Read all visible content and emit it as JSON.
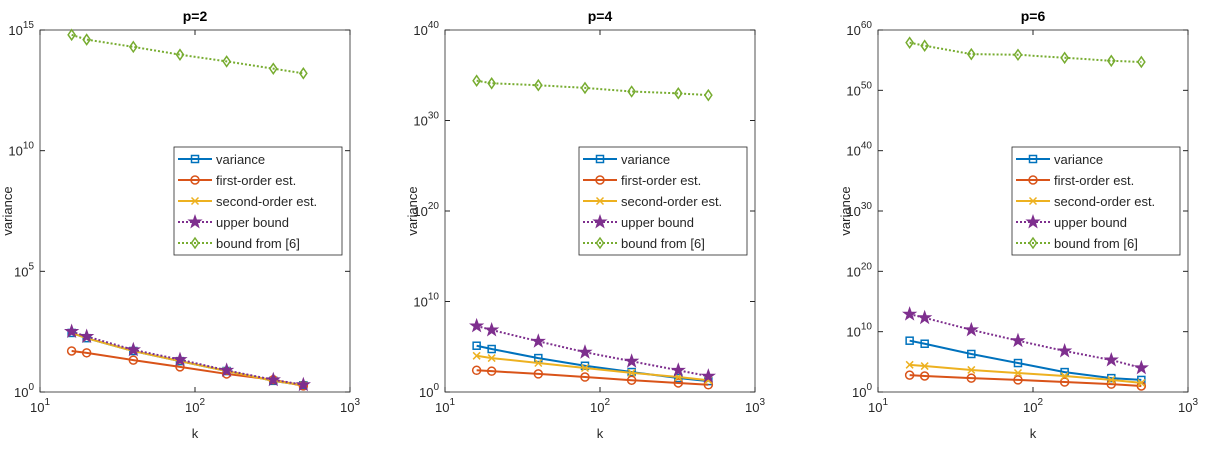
{
  "chart_data": [
    {
      "type": "line",
      "title": "p=2",
      "x_label": "k",
      "y_label": "variance",
      "log_x": true,
      "log_y": true,
      "legend": "east",
      "x": [
        16,
        20,
        40,
        80,
        160,
        320,
        500
      ],
      "xlim": [
        10,
        1000
      ],
      "xticks": [
        {
          "value": 10,
          "label": "10^1"
        },
        {
          "value": 100,
          "label": "10^2"
        },
        {
          "value": 1000,
          "label": "10^3"
        }
      ],
      "ylim": [
        1,
        1000000000000000.0
      ],
      "yticks": [
        {
          "value": 1,
          "label": "10^0"
        },
        {
          "value": 100000.0,
          "label": "10^5"
        },
        {
          "value": 10000000000.0,
          "label": "10^10"
        },
        {
          "value": 1000000000000000.0,
          "label": "10^15"
        }
      ],
      "series": [
        {
          "name": "variance",
          "color": "#0072BD",
          "line_style": "solid",
          "marker": "square",
          "values": [
            280,
            170,
            50,
            19,
            7.4,
            2.9,
            1.9
          ]
        },
        {
          "name": "first-order est.",
          "color": "#D95319",
          "line_style": "solid",
          "marker": "circle",
          "values": [
            50,
            42,
            21,
            11,
            5.6,
            3.2,
            1.8
          ]
        },
        {
          "name": "second-order est.",
          "color": "#EDB120",
          "line_style": "solid",
          "marker": "x",
          "values": [
            280,
            170,
            50,
            19,
            7.4,
            2.9,
            1.9
          ]
        },
        {
          "name": "upper bound",
          "color": "#7E2F8E",
          "line_style": "dotted",
          "marker": "star",
          "values": [
            320,
            200,
            56,
            22,
            7.9,
            3.2,
            2.0
          ]
        },
        {
          "name": "bound from [6]",
          "color": "#77AC30",
          "line_style": "dotted",
          "marker": "diamond",
          "values": [
            630000000000000.0,
            400000000000000.0,
            200000000000000.0,
            95000000000000.0,
            50000000000000.0,
            25000000000000.0,
            16000000000000.0
          ]
        }
      ]
    },
    {
      "type": "line",
      "title": "p=4",
      "x_label": "k",
      "y_label": "variance",
      "log_x": true,
      "log_y": true,
      "legend": "east",
      "x": [
        16,
        20,
        40,
        80,
        160,
        320,
        500
      ],
      "xlim": [
        10,
        1000
      ],
      "xticks": [
        {
          "value": 10,
          "label": "10^1"
        },
        {
          "value": 100,
          "label": "10^2"
        },
        {
          "value": 1000,
          "label": "10^3"
        }
      ],
      "ylim": [
        1,
        1e+40
      ],
      "yticks": [
        {
          "value": 1,
          "label": "10^0"
        },
        {
          "value": 10000000000.0,
          "label": "10^10"
        },
        {
          "value": 1e+20,
          "label": "10^20"
        },
        {
          "value": 1e+30,
          "label": "10^30"
        },
        {
          "value": 1e+40,
          "label": "10^40"
        }
      ],
      "series": [
        {
          "name": "variance",
          "color": "#0072BD",
          "line_style": "solid",
          "marker": "square",
          "values": [
            130000.0,
            56000.0,
            5600.0,
            790,
            160,
            35,
            16
          ]
        },
        {
          "name": "first-order est.",
          "color": "#D95319",
          "line_style": "solid",
          "marker": "circle",
          "values": [
            250,
            200,
            100,
            45,
            20,
            10,
            6.3
          ]
        },
        {
          "name": "second-order est.",
          "color": "#EDB120",
          "line_style": "solid",
          "marker": "x",
          "values": [
            10000.0,
            5600.0,
            1600.0,
            450,
            130,
            45,
            20
          ]
        },
        {
          "name": "upper bound",
          "color": "#7E2F8E",
          "line_style": "dotted",
          "marker": "star",
          "values": [
            20000000.0,
            7100000.0,
            400000.0,
            25000.0,
            2500.0,
            250,
            56
          ]
        },
        {
          "name": "bound from [6]",
          "color": "#77AC30",
          "line_style": "dotted",
          "marker": "diamond",
          "values": [
            2.5e+34,
            1.3e+34,
            7.9e+33,
            4e+33,
            1.6e+33,
            1e+33,
            6.3e+32
          ]
        }
      ]
    },
    {
      "type": "line",
      "title": "p=6",
      "x_label": "k",
      "y_label": "variance",
      "log_x": true,
      "log_y": true,
      "legend": "east",
      "x": [
        16,
        20,
        40,
        80,
        160,
        320,
        500
      ],
      "xlim": [
        10,
        1000
      ],
      "xticks": [
        {
          "value": 10,
          "label": "10^1"
        },
        {
          "value": 100,
          "label": "10^2"
        },
        {
          "value": 1000,
          "label": "10^3"
        }
      ],
      "ylim": [
        1,
        1e+60
      ],
      "yticks": [
        {
          "value": 1,
          "label": "10^0"
        },
        {
          "value": 10000000000.0,
          "label": "10^10"
        },
        {
          "value": 1e+20,
          "label": "10^20"
        },
        {
          "value": 1e+30,
          "label": "10^30"
        },
        {
          "value": 1e+40,
          "label": "10^40"
        },
        {
          "value": 1e+50,
          "label": "10^50"
        },
        {
          "value": 1e+60,
          "label": "10^60"
        }
      ],
      "series": [
        {
          "name": "variance",
          "color": "#0072BD",
          "line_style": "solid",
          "marker": "square",
          "values": [
            320000000.0,
            100000000.0,
            2000000.0,
            63000.0,
            2000.0,
            200,
            100
          ]
        },
        {
          "name": "first-order est.",
          "color": "#D95319",
          "line_style": "solid",
          "marker": "circle",
          "values": [
            630,
            450,
            200,
            100,
            45,
            20,
            10
          ]
        },
        {
          "name": "second-order est.",
          "color": "#EDB120",
          "line_style": "solid",
          "marker": "x",
          "values": [
            32000.0,
            20000.0,
            4500.0,
            1400.0,
            450,
            100,
            32
          ]
        },
        {
          "name": "upper bound",
          "color": "#7E2F8E",
          "line_style": "dotted",
          "marker": "star",
          "values": [
            7900000000000.0,
            2000000000000.0,
            20000000000.0,
            320000000.0,
            6300000.0,
            200000.0,
            10000.0
          ]
        },
        {
          "name": "bound from [6]",
          "color": "#77AC30",
          "line_style": "dotted",
          "marker": "diamond",
          "values": [
            7.9e+57,
            2.5e+57,
            1e+56,
            7.9e+55,
            2.5e+55,
            7.9e+54,
            5e+54
          ]
        }
      ]
    }
  ]
}
